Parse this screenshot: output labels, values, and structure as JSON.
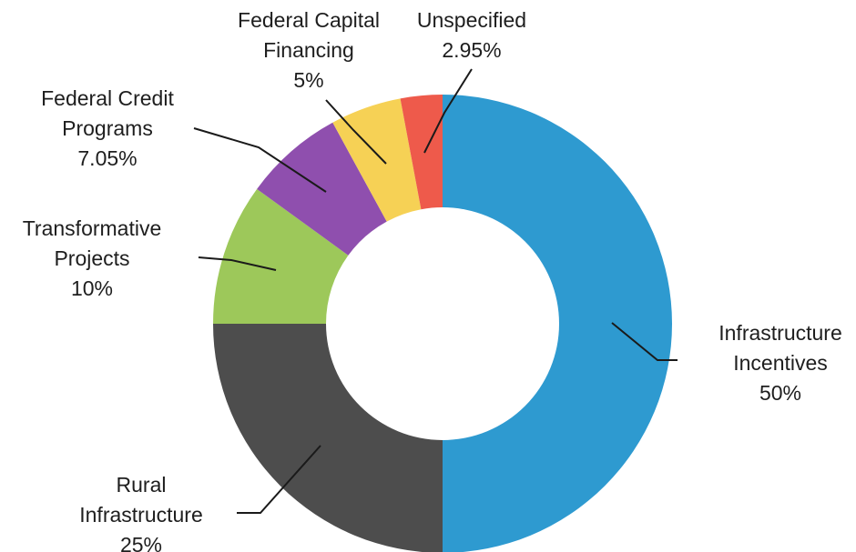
{
  "chart_data": {
    "type": "donut",
    "title": "",
    "legend": "none",
    "start": "top",
    "direction": "clockwise",
    "slices": [
      {
        "name": "Infrastructure Incentives",
        "value": 50,
        "label_lines": [
          "Infrastructure",
          "Incentives",
          "50%"
        ],
        "color": "#2e9ad0"
      },
      {
        "name": "Rural Infrastructure",
        "value": 25,
        "label_lines": [
          "Rural",
          "Infrastructure",
          "25%"
        ],
        "color": "#4d4d4d"
      },
      {
        "name": "Transformative Projects",
        "value": 10,
        "label_lines": [
          "Transformative",
          "Projects",
          "10%"
        ],
        "color": "#9dc85a"
      },
      {
        "name": "Federal Credit Programs",
        "value": 7.05,
        "label_lines": [
          "Federal Credit",
          "Programs",
          "7.05%"
        ],
        "color": "#8f4fae"
      },
      {
        "name": "Federal Capital Financing",
        "value": 5,
        "label_lines": [
          "Federal Capital",
          "Financing",
          "5%"
        ],
        "color": "#f6d155"
      },
      {
        "name": "Unspecified",
        "value": 2.95,
        "label_lines": [
          "Unspecified",
          "2.95%"
        ],
        "color": "#ee5a4b"
      }
    ]
  }
}
